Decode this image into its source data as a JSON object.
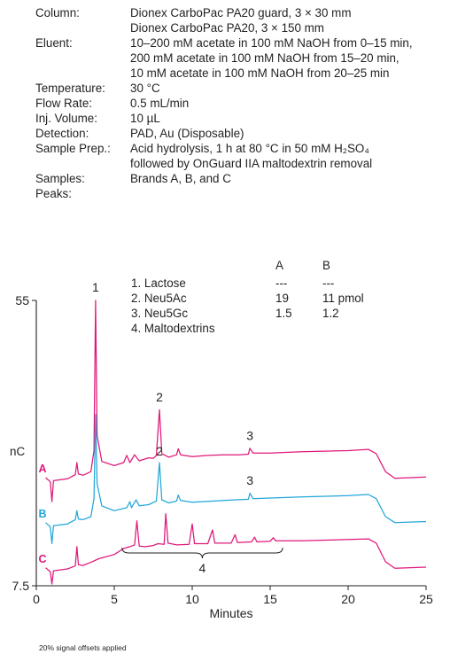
{
  "conditions": [
    {
      "label": "Column:",
      "values": [
        "Dionex CarboPac PA20 guard, 3 × 30 mm",
        "Dionex CarboPac PA20, 3 × 150 mm"
      ]
    },
    {
      "label": "Eluent:",
      "values": [
        "10–200 mM acetate in 100 mM NaOH from 0–15 min,",
        "200 mM acetate in 100 mM NaOH from 15–20 min,",
        "10 mM acetate in 100 mM NaOH from 20–25 min"
      ]
    },
    {
      "label": "Temperature:",
      "values": [
        "30 °C"
      ]
    },
    {
      "label": "Flow Rate:",
      "values": [
        "0.5 mL/min"
      ]
    },
    {
      "label": "Inj. Volume:",
      "values": [
        "10 µL"
      ]
    },
    {
      "label": "Detection:",
      "values": [
        "PAD, Au (Disposable)"
      ]
    },
    {
      "label": "Sample Prep.:",
      "values": [
        "Acid hydrolysis, 1 h at 80 °C in 50 mM H₂SO₄",
        "followed by OnGuard IIA maltodextrin removal"
      ]
    },
    {
      "label": "Samples:",
      "values": [
        "Brands A, B, and C"
      ]
    },
    {
      "label": "Peaks:",
      "values": [
        ""
      ]
    }
  ],
  "peaks_table": {
    "col_a": "A",
    "col_b": "B",
    "rows": [
      {
        "name": "1.  Lactose",
        "a": "---",
        "b": "---"
      },
      {
        "name": "2.  Neu5Ac",
        "a": "19",
        "b": "11 pmol"
      },
      {
        "name": "3.  Neu5Gc",
        "a": "1.5",
        "b": "1.2"
      },
      {
        "name": "4.  Maltodextrins",
        "a": "",
        "b": ""
      }
    ]
  },
  "footnote": "20% signal offsets applied",
  "chart_data": {
    "type": "line",
    "xlabel": "Minutes",
    "ylabel": "nC",
    "xlim": [
      0,
      25
    ],
    "ylim": [
      7.5,
      55
    ],
    "x_ticks": [
      "0",
      "5",
      "10",
      "15",
      "20",
      "25"
    ],
    "y_ticks": [
      "55",
      "7.5"
    ],
    "grid": false,
    "series": [
      {
        "name": "A",
        "color": "#e0187a",
        "baseline": 25.5,
        "points": [
          [
            0.6,
            25.5
          ],
          [
            0.9,
            24.8
          ],
          [
            1.0,
            21.5
          ],
          [
            1.1,
            25.0
          ],
          [
            2.0,
            25.3
          ],
          [
            2.5,
            26.0
          ],
          [
            2.6,
            28.0
          ],
          [
            2.7,
            26.1
          ],
          [
            3.0,
            25.9
          ],
          [
            3.5,
            26.5
          ],
          [
            3.7,
            30.0
          ],
          [
            3.8,
            55.0
          ],
          [
            3.9,
            32.5
          ],
          [
            4.2,
            28.2
          ],
          [
            5.0,
            27.5
          ],
          [
            5.6,
            28.0
          ],
          [
            5.8,
            29.2
          ],
          [
            6.0,
            28.0
          ],
          [
            6.3,
            29.3
          ],
          [
            6.6,
            28.3
          ],
          [
            7.2,
            28.8
          ],
          [
            7.5,
            28.7
          ],
          [
            7.7,
            29.2
          ],
          [
            7.9,
            36.8
          ],
          [
            8.05,
            29.5
          ],
          [
            8.5,
            28.9
          ],
          [
            9.0,
            29.3
          ],
          [
            9.1,
            30.3
          ],
          [
            9.25,
            29.3
          ],
          [
            10.0,
            29.0
          ],
          [
            11.0,
            29.2
          ],
          [
            12.0,
            29.3
          ],
          [
            13.0,
            29.3
          ],
          [
            13.6,
            29.4
          ],
          [
            13.7,
            30.4
          ],
          [
            13.9,
            29.6
          ],
          [
            15.0,
            29.6
          ],
          [
            17.0,
            29.8
          ],
          [
            20.0,
            30.0
          ],
          [
            21.3,
            30.2
          ],
          [
            21.8,
            29.5
          ],
          [
            22.4,
            26.5
          ],
          [
            23.0,
            25.4
          ],
          [
            25.0,
            25.6
          ]
        ],
        "peak_labels": [
          {
            "text": "1",
            "x": 3.8,
            "y": 56.5
          },
          {
            "text": "2",
            "x": 7.9,
            "y": 38.2
          },
          {
            "text": "3",
            "x": 13.7,
            "y": 31.8
          }
        ]
      },
      {
        "name": "B",
        "color": "#22a7d9",
        "baseline": 18.0,
        "points": [
          [
            0.6,
            18.0
          ],
          [
            0.9,
            17.3
          ],
          [
            1.0,
            14.5
          ],
          [
            1.1,
            17.5
          ],
          [
            2.0,
            17.8
          ],
          [
            2.5,
            18.5
          ],
          [
            2.6,
            20.0
          ],
          [
            2.7,
            18.6
          ],
          [
            3.0,
            18.5
          ],
          [
            3.5,
            19.0
          ],
          [
            3.7,
            22.0
          ],
          [
            3.8,
            36.0
          ],
          [
            3.9,
            24.5
          ],
          [
            4.2,
            20.8
          ],
          [
            5.0,
            20.0
          ],
          [
            5.8,
            20.5
          ],
          [
            6.0,
            21.5
          ],
          [
            6.1,
            20.5
          ],
          [
            6.4,
            21.8
          ],
          [
            6.6,
            20.8
          ],
          [
            7.2,
            21.0
          ],
          [
            7.7,
            21.6
          ],
          [
            7.9,
            28.0
          ],
          [
            8.05,
            21.8
          ],
          [
            8.5,
            21.3
          ],
          [
            9.0,
            21.6
          ],
          [
            9.1,
            22.6
          ],
          [
            9.25,
            21.7
          ],
          [
            10.0,
            21.4
          ],
          [
            12.0,
            21.7
          ],
          [
            13.6,
            21.9
          ],
          [
            13.7,
            22.9
          ],
          [
            13.9,
            22.0
          ],
          [
            15.0,
            22.1
          ],
          [
            17.0,
            22.3
          ],
          [
            20.0,
            22.5
          ],
          [
            21.3,
            22.7
          ],
          [
            21.8,
            22.0
          ],
          [
            22.4,
            19.0
          ],
          [
            23.0,
            18.0
          ],
          [
            25.0,
            18.2
          ]
        ],
        "peak_labels": [
          {
            "text": "2",
            "x": 7.9,
            "y": 29.2
          },
          {
            "text": "3",
            "x": 13.7,
            "y": 24.3
          }
        ]
      },
      {
        "name": "C",
        "color": "#e0187a",
        "baseline": 10.5,
        "points": [
          [
            0.6,
            10.5
          ],
          [
            0.9,
            9.8
          ],
          [
            1.0,
            7.8
          ],
          [
            1.1,
            10.0
          ],
          [
            2.0,
            10.3
          ],
          [
            2.5,
            10.8
          ],
          [
            2.6,
            14.0
          ],
          [
            2.7,
            11.0
          ],
          [
            3.0,
            10.9
          ],
          [
            3.5,
            11.4
          ],
          [
            4.0,
            12.0
          ],
          [
            5.0,
            12.7
          ],
          [
            5.6,
            13.7
          ],
          [
            6.0,
            14.0
          ],
          [
            6.3,
            14.3
          ],
          [
            6.45,
            18.3
          ],
          [
            6.6,
            14.1
          ],
          [
            7.0,
            14.0
          ],
          [
            7.5,
            14.2
          ],
          [
            7.8,
            14.5
          ],
          [
            8.2,
            14.4
          ],
          [
            8.3,
            19.5
          ],
          [
            8.45,
            14.6
          ],
          [
            9.0,
            14.3
          ],
          [
            9.8,
            14.4
          ],
          [
            10.0,
            17.8
          ],
          [
            10.15,
            14.5
          ],
          [
            11.0,
            14.5
          ],
          [
            11.3,
            16.8
          ],
          [
            11.45,
            14.6
          ],
          [
            12.5,
            14.6
          ],
          [
            12.75,
            16.0
          ],
          [
            12.9,
            14.7
          ],
          [
            13.8,
            14.8
          ],
          [
            14.0,
            15.6
          ],
          [
            14.15,
            14.8
          ],
          [
            15.0,
            14.9
          ],
          [
            15.2,
            15.5
          ],
          [
            15.35,
            15.0
          ],
          [
            17.0,
            15.0
          ],
          [
            20.0,
            15.2
          ],
          [
            21.3,
            15.3
          ],
          [
            21.8,
            14.6
          ],
          [
            22.4,
            11.5
          ],
          [
            23.0,
            10.4
          ],
          [
            25.0,
            10.6
          ]
        ],
        "peak_labels": []
      }
    ],
    "annotation": {
      "text": "4",
      "bracket_from": 5.5,
      "bracket_to": 15.8
    }
  }
}
